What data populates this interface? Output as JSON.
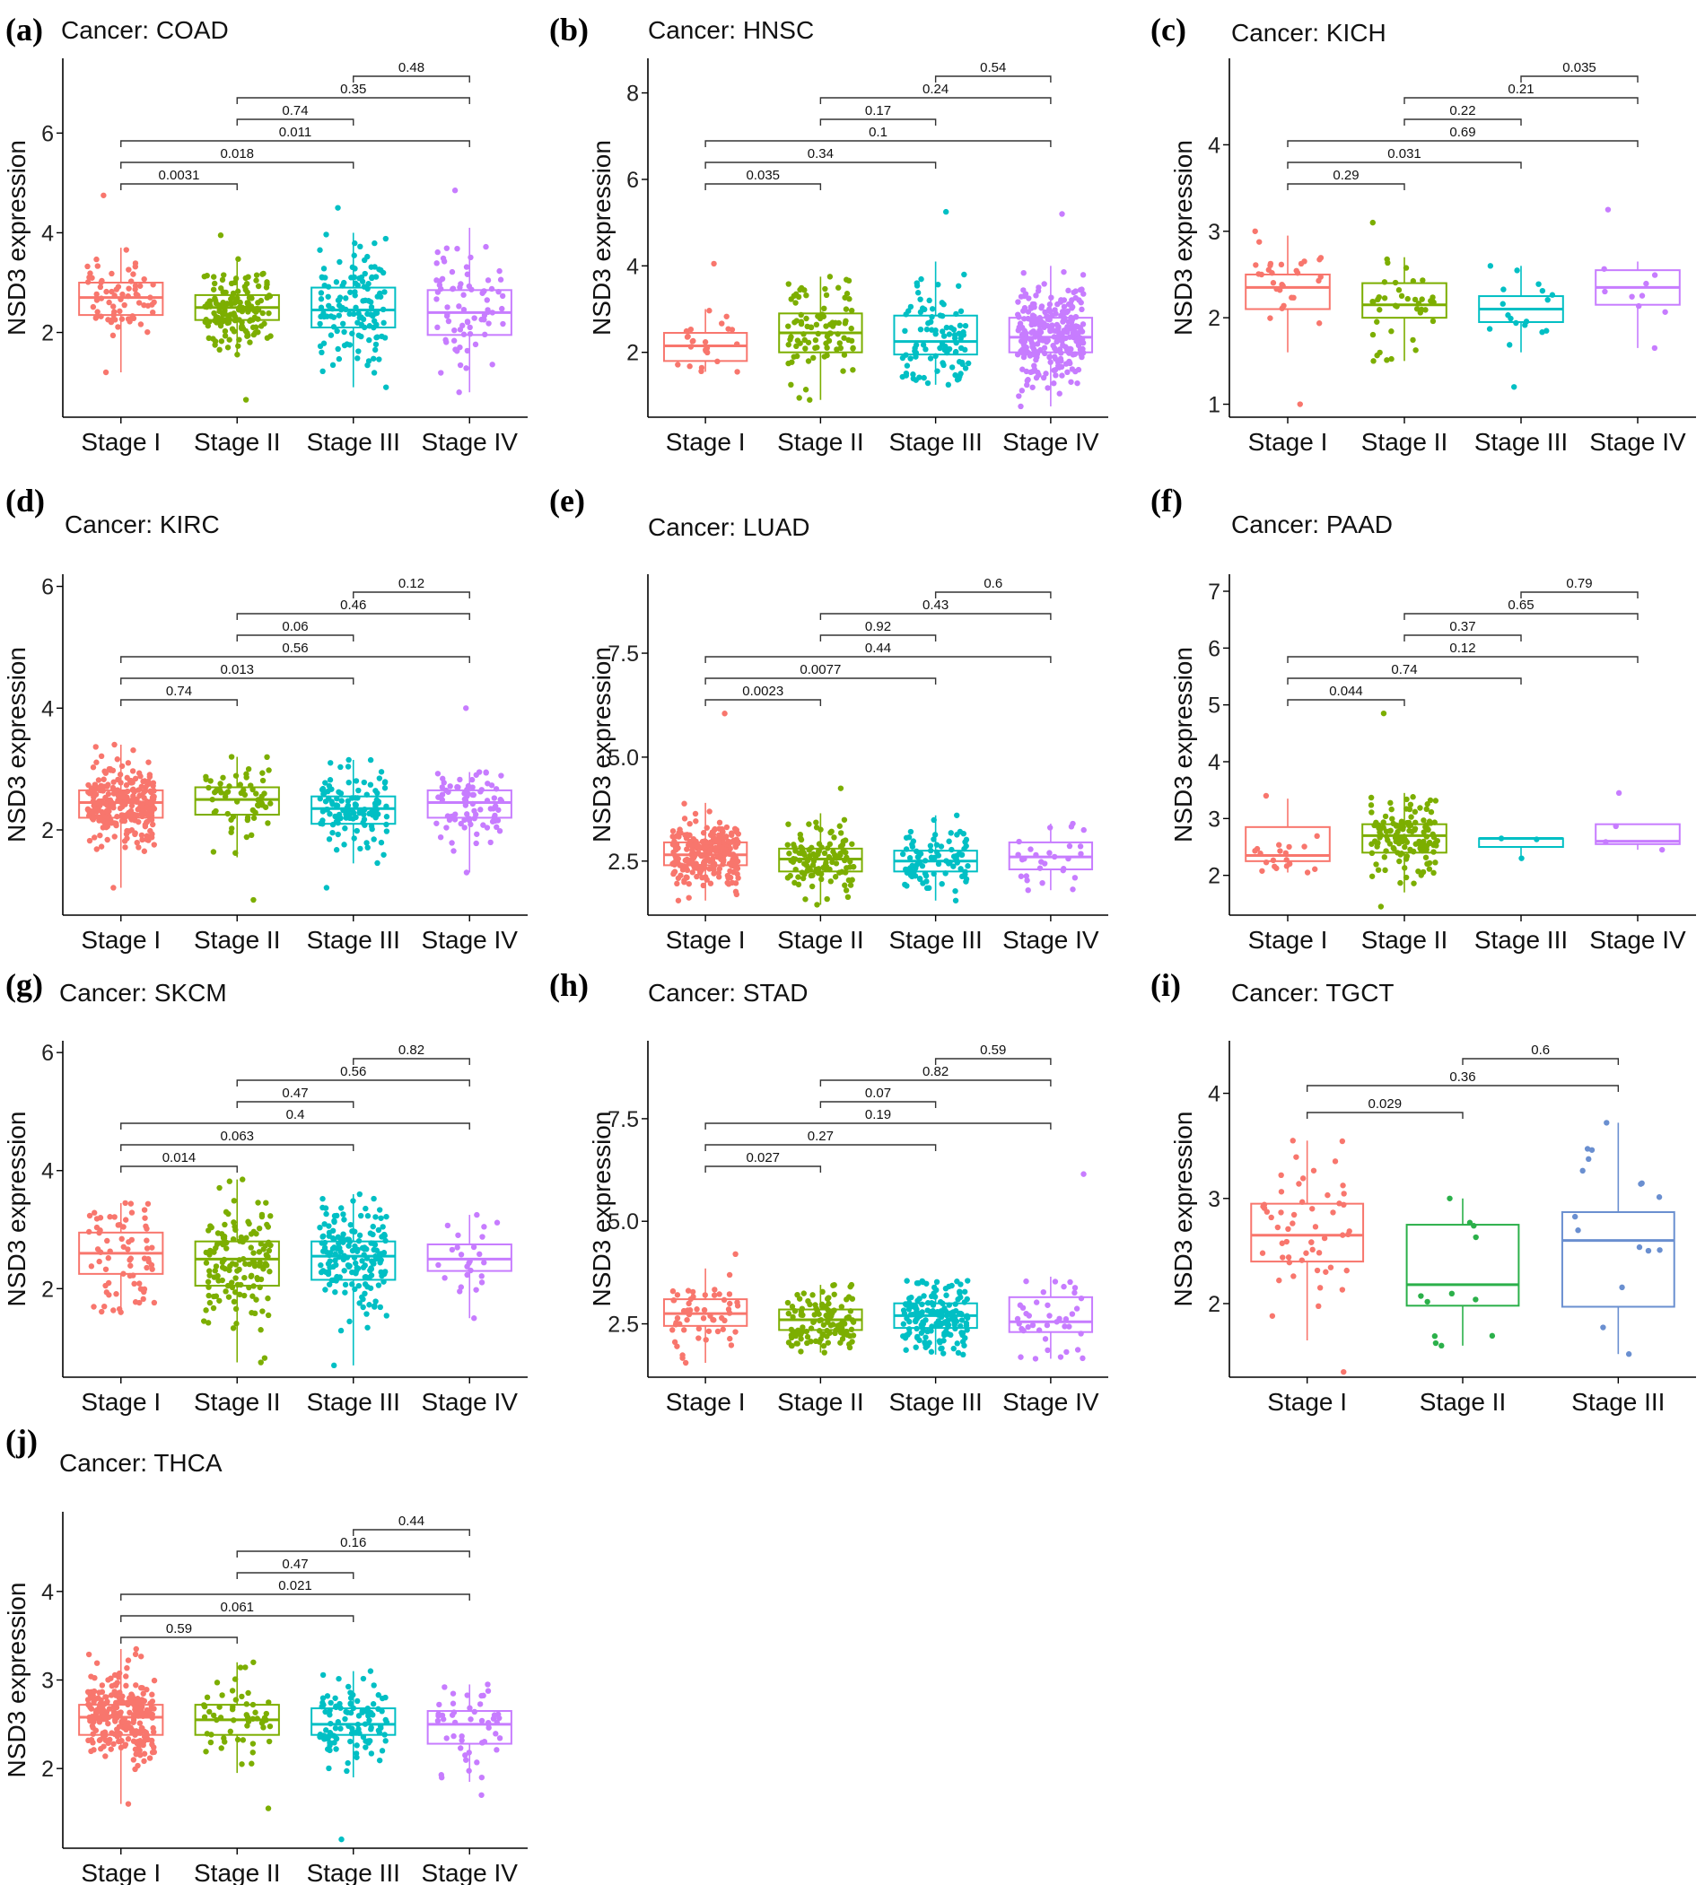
{
  "figure": {
    "ylabel": "NSD3 expression",
    "colors": [
      "#f8766d",
      "#7cae00",
      "#00bfc4",
      "#c77cff"
    ],
    "tgct_colors": [
      "#f8766d",
      "#2bb04a",
      "#6a8fd0"
    ]
  },
  "chart_data": [
    {
      "panel": "(a)",
      "title": "Cancer: COAD",
      "type": "boxplot",
      "categories": [
        "Stage I",
        "Stage II",
        "Stage III",
        "Stage IV"
      ],
      "ylim": [
        0.3,
        7.5
      ],
      "yticks": [
        2,
        4,
        6
      ],
      "n": [
        70,
        160,
        130,
        75
      ],
      "stats": [
        {
          "q1": 2.35,
          "med": 2.7,
          "q3": 3.0,
          "wlo": 1.2,
          "whi": 3.7,
          "min": 1.2,
          "max": 4.75
        },
        {
          "q1": 2.25,
          "med": 2.5,
          "q3": 2.75,
          "wlo": 1.55,
          "whi": 3.5,
          "min": 0.65,
          "max": 3.95
        },
        {
          "q1": 2.1,
          "med": 2.45,
          "q3": 2.9,
          "wlo": 0.9,
          "whi": 4.0,
          "min": 0.9,
          "max": 4.5
        },
        {
          "q1": 1.95,
          "med": 2.4,
          "q3": 2.85,
          "wlo": 0.8,
          "whi": 4.1,
          "min": 0.8,
          "max": 4.85
        }
      ],
      "comparisons": [
        {
          "a": 0,
          "b": 1,
          "p": "0.0031"
        },
        {
          "a": 0,
          "b": 2,
          "p": "0.018"
        },
        {
          "a": 0,
          "b": 3,
          "p": "0.011"
        },
        {
          "a": 1,
          "b": 2,
          "p": "0.74"
        },
        {
          "a": 1,
          "b": 3,
          "p": "0.35"
        },
        {
          "a": 2,
          "b": 3,
          "p": "0.48"
        }
      ]
    },
    {
      "panel": "(b)",
      "title": "Cancer: HNSC",
      "type": "boxplot",
      "categories": [
        "Stage I",
        "Stage II",
        "Stage III",
        "Stage IV"
      ],
      "ylim": [
        0.5,
        8.8
      ],
      "yticks": [
        2,
        4,
        6,
        8
      ],
      "n": [
        25,
        90,
        95,
        270
      ],
      "stats": [
        {
          "q1": 1.8,
          "med": 2.15,
          "q3": 2.45,
          "wlo": 1.55,
          "whi": 3.0,
          "min": 1.55,
          "max": 4.05
        },
        {
          "q1": 2.0,
          "med": 2.45,
          "q3": 2.9,
          "wlo": 0.9,
          "whi": 3.75,
          "min": 0.9,
          "max": 3.75
        },
        {
          "q1": 1.95,
          "med": 2.25,
          "q3": 2.85,
          "wlo": 1.25,
          "whi": 4.1,
          "min": 1.25,
          "max": 5.25
        },
        {
          "q1": 2.0,
          "med": 2.35,
          "q3": 2.8,
          "wlo": 0.75,
          "whi": 4.0,
          "min": 0.75,
          "max": 5.2
        }
      ],
      "comparisons": [
        {
          "a": 0,
          "b": 1,
          "p": "0.035"
        },
        {
          "a": 0,
          "b": 2,
          "p": "0.34"
        },
        {
          "a": 0,
          "b": 3,
          "p": "0.1"
        },
        {
          "a": 1,
          "b": 2,
          "p": "0.17"
        },
        {
          "a": 1,
          "b": 3,
          "p": "0.24"
        },
        {
          "a": 2,
          "b": 3,
          "p": "0.54"
        }
      ]
    },
    {
      "panel": "(c)",
      "title": "Cancer: KICH",
      "type": "boxplot",
      "categories": [
        "Stage I",
        "Stage II",
        "Stage III",
        "Stage IV"
      ],
      "ylim": [
        0.85,
        5.0
      ],
      "yticks": [
        1,
        2,
        3,
        4
      ],
      "n": [
        30,
        40,
        18,
        10
      ],
      "stats": [
        {
          "q1": 2.1,
          "med": 2.35,
          "q3": 2.5,
          "wlo": 1.6,
          "whi": 2.95,
          "min": 1.0,
          "max": 3.0
        },
        {
          "q1": 2.0,
          "med": 2.15,
          "q3": 2.4,
          "wlo": 1.5,
          "whi": 2.7,
          "min": 1.5,
          "max": 3.1
        },
        {
          "q1": 1.95,
          "med": 2.1,
          "q3": 2.25,
          "wlo": 1.6,
          "whi": 2.6,
          "min": 1.2,
          "max": 2.6
        },
        {
          "q1": 2.15,
          "med": 2.35,
          "q3": 2.55,
          "wlo": 1.65,
          "whi": 2.65,
          "min": 1.65,
          "max": 3.25
        }
      ],
      "comparisons": [
        {
          "a": 0,
          "b": 1,
          "p": "0.29"
        },
        {
          "a": 0,
          "b": 2,
          "p": "0.031"
        },
        {
          "a": 0,
          "b": 3,
          "p": "0.69"
        },
        {
          "a": 1,
          "b": 2,
          "p": "0.22"
        },
        {
          "a": 1,
          "b": 3,
          "p": "0.21"
        },
        {
          "a": 2,
          "b": 3,
          "p": "0.035"
        }
      ]
    },
    {
      "panel": "(d)",
      "title": "Cancer: KIRC",
      "type": "boxplot",
      "categories": [
        "Stage I",
        "Stage II",
        "Stage III",
        "Stage IV"
      ],
      "ylim": [
        0.6,
        6.2
      ],
      "yticks": [
        2,
        4,
        6
      ],
      "n": [
        260,
        60,
        120,
        80
      ],
      "stats": [
        {
          "q1": 2.2,
          "med": 2.45,
          "q3": 2.65,
          "wlo": 1.05,
          "whi": 3.4,
          "min": 1.05,
          "max": 3.4
        },
        {
          "q1": 2.25,
          "med": 2.5,
          "q3": 2.7,
          "wlo": 1.55,
          "whi": 3.2,
          "min": 0.85,
          "max": 3.2
        },
        {
          "q1": 2.1,
          "med": 2.35,
          "q3": 2.55,
          "wlo": 1.45,
          "whi": 3.15,
          "min": 1.05,
          "max": 3.15
        },
        {
          "q1": 2.2,
          "med": 2.45,
          "q3": 2.65,
          "wlo": 1.3,
          "whi": 2.95,
          "min": 1.3,
          "max": 4.0
        }
      ],
      "comparisons": [
        {
          "a": 0,
          "b": 1,
          "p": "0.74"
        },
        {
          "a": 0,
          "b": 2,
          "p": "0.013"
        },
        {
          "a": 0,
          "b": 3,
          "p": "0.56"
        },
        {
          "a": 1,
          "b": 2,
          "p": "0.06"
        },
        {
          "a": 1,
          "b": 3,
          "p": "0.46"
        },
        {
          "a": 2,
          "b": 3,
          "p": "0.12"
        }
      ]
    },
    {
      "panel": "(e)",
      "title": "Cancer: LUAD",
      "type": "boxplot",
      "categories": [
        "Stage I",
        "Stage II",
        "Stage III",
        "Stage IV"
      ],
      "ylim": [
        1.2,
        9.4
      ],
      "yticks": [
        2.5,
        5.0,
        7.5
      ],
      "ytick_labels": [
        "2.5",
        "5.0",
        "7.5"
      ],
      "n": [
        270,
        120,
        85,
        28
      ],
      "stats": [
        {
          "q1": 2.4,
          "med": 2.65,
          "q3": 2.95,
          "wlo": 1.55,
          "whi": 3.9,
          "min": 1.55,
          "max": 6.05
        },
        {
          "q1": 2.25,
          "med": 2.55,
          "q3": 2.8,
          "wlo": 1.45,
          "whi": 3.65,
          "min": 1.45,
          "max": 4.25
        },
        {
          "q1": 2.25,
          "med": 2.5,
          "q3": 2.75,
          "wlo": 1.55,
          "whi": 3.6,
          "min": 1.55,
          "max": 3.6
        },
        {
          "q1": 2.3,
          "med": 2.6,
          "q3": 2.95,
          "wlo": 1.8,
          "whi": 3.4,
          "min": 1.8,
          "max": 3.4
        }
      ],
      "comparisons": [
        {
          "a": 0,
          "b": 1,
          "p": "0.0023"
        },
        {
          "a": 0,
          "b": 2,
          "p": "0.0077"
        },
        {
          "a": 0,
          "b": 3,
          "p": "0.44"
        },
        {
          "a": 1,
          "b": 2,
          "p": "0.92"
        },
        {
          "a": 1,
          "b": 3,
          "p": "0.43"
        },
        {
          "a": 2,
          "b": 3,
          "p": "0.6"
        }
      ]
    },
    {
      "panel": "(f)",
      "title": "Cancer: PAAD",
      "type": "boxplot",
      "categories": [
        "Stage I",
        "Stage II",
        "Stage III",
        "Stage IV"
      ],
      "ylim": [
        1.3,
        7.3
      ],
      "yticks": [
        2,
        3,
        4,
        5,
        6,
        7
      ],
      "n": [
        20,
        140,
        3,
        4
      ],
      "stats": [
        {
          "q1": 2.25,
          "med": 2.35,
          "q3": 2.85,
          "wlo": 2.05,
          "whi": 3.35,
          "min": 2.05,
          "max": 3.4
        },
        {
          "q1": 2.4,
          "med": 2.7,
          "q3": 2.9,
          "wlo": 1.7,
          "whi": 3.45,
          "min": 1.45,
          "max": 4.85
        },
        {
          "q1": 2.5,
          "med": 2.65,
          "q3": 2.65,
          "wlo": 2.3,
          "whi": 2.65,
          "min": 2.3,
          "max": 2.65
        },
        {
          "q1": 2.55,
          "med": 2.6,
          "q3": 2.9,
          "wlo": 2.45,
          "whi": 2.9,
          "min": 2.45,
          "max": 3.45
        }
      ],
      "comparisons": [
        {
          "a": 0,
          "b": 1,
          "p": "0.044"
        },
        {
          "a": 0,
          "b": 2,
          "p": "0.74"
        },
        {
          "a": 0,
          "b": 3,
          "p": "0.12"
        },
        {
          "a": 1,
          "b": 2,
          "p": "0.37"
        },
        {
          "a": 1,
          "b": 3,
          "p": "0.65"
        },
        {
          "a": 2,
          "b": 3,
          "p": "0.79"
        }
      ]
    },
    {
      "panel": "(g)",
      "title": "Cancer: SKCM",
      "type": "boxplot",
      "categories": [
        "Stage I",
        "Stage II",
        "Stage III",
        "Stage IV"
      ],
      "ylim": [
        0.5,
        6.2
      ],
      "yticks": [
        2,
        4,
        6
      ],
      "n": [
        70,
        140,
        170,
        25
      ],
      "stats": [
        {
          "q1": 2.25,
          "med": 2.6,
          "q3": 2.95,
          "wlo": 1.6,
          "whi": 3.45,
          "min": 1.6,
          "max": 3.45
        },
        {
          "q1": 2.05,
          "med": 2.5,
          "q3": 2.8,
          "wlo": 0.75,
          "whi": 3.85,
          "min": 0.75,
          "max": 3.85
        },
        {
          "q1": 2.15,
          "med": 2.55,
          "q3": 2.8,
          "wlo": 0.7,
          "whi": 3.6,
          "min": 0.7,
          "max": 3.6
        },
        {
          "q1": 2.3,
          "med": 2.5,
          "q3": 2.75,
          "wlo": 1.5,
          "whi": 3.25,
          "min": 1.5,
          "max": 3.25
        }
      ],
      "comparisons": [
        {
          "a": 0,
          "b": 1,
          "p": "0.014"
        },
        {
          "a": 0,
          "b": 2,
          "p": "0.063"
        },
        {
          "a": 0,
          "b": 3,
          "p": "0.4"
        },
        {
          "a": 1,
          "b": 2,
          "p": "0.47"
        },
        {
          "a": 1,
          "b": 3,
          "p": "0.56"
        },
        {
          "a": 2,
          "b": 3,
          "p": "0.82"
        }
      ]
    },
    {
      "panel": "(h)",
      "title": "Cancer: STAD",
      "type": "boxplot",
      "categories": [
        "Stage I",
        "Stage II",
        "Stage III",
        "Stage IV"
      ],
      "ylim": [
        1.2,
        9.4
      ],
      "yticks": [
        2.5,
        5.0,
        7.5
      ],
      "ytick_labels": [
        "2.5",
        "5.0",
        "7.5"
      ],
      "n": [
        55,
        120,
        165,
        40
      ],
      "stats": [
        {
          "q1": 2.45,
          "med": 2.75,
          "q3": 3.1,
          "wlo": 1.55,
          "whi": 3.85,
          "min": 1.55,
          "max": 4.2
        },
        {
          "q1": 2.35,
          "med": 2.6,
          "q3": 2.85,
          "wlo": 1.8,
          "whi": 3.45,
          "min": 1.8,
          "max": 3.45
        },
        {
          "q1": 2.4,
          "med": 2.7,
          "q3": 3.0,
          "wlo": 1.75,
          "whi": 3.55,
          "min": 1.75,
          "max": 3.55
        },
        {
          "q1": 2.3,
          "med": 2.55,
          "q3": 3.15,
          "wlo": 1.65,
          "whi": 3.65,
          "min": 1.65,
          "max": 6.15
        }
      ],
      "comparisons": [
        {
          "a": 0,
          "b": 1,
          "p": "0.027"
        },
        {
          "a": 0,
          "b": 2,
          "p": "0.27"
        },
        {
          "a": 0,
          "b": 3,
          "p": "0.19"
        },
        {
          "a": 1,
          "b": 2,
          "p": "0.07"
        },
        {
          "a": 1,
          "b": 3,
          "p": "0.82"
        },
        {
          "a": 2,
          "b": 3,
          "p": "0.59"
        }
      ]
    },
    {
      "panel": "(i)",
      "title": "Cancer: TGCT",
      "type": "boxplot",
      "categories": [
        "Stage I",
        "Stage II",
        "Stage III"
      ],
      "ylim": [
        1.3,
        4.5
      ],
      "yticks": [
        2,
        3,
        4
      ],
      "n": [
        55,
        12,
        16
      ],
      "stats": [
        {
          "q1": 2.4,
          "med": 2.65,
          "q3": 2.95,
          "wlo": 1.65,
          "whi": 3.55,
          "min": 1.35,
          "max": 3.55
        },
        {
          "q1": 1.98,
          "med": 2.18,
          "q3": 2.75,
          "wlo": 1.6,
          "whi": 3.0,
          "min": 1.6,
          "max": 3.0
        },
        {
          "q1": 1.97,
          "med": 2.6,
          "q3": 2.87,
          "wlo": 1.52,
          "whi": 3.72,
          "min": 1.52,
          "max": 3.72
        }
      ],
      "comparisons": [
        {
          "a": 0,
          "b": 1,
          "p": "0.029"
        },
        {
          "a": 0,
          "b": 2,
          "p": "0.36"
        },
        {
          "a": 1,
          "b": 2,
          "p": "0.6"
        }
      ]
    },
    {
      "panel": "(j)",
      "title": "Cancer: THCA",
      "type": "boxplot",
      "categories": [
        "Stage I",
        "Stage II",
        "Stage III",
        "Stage IV"
      ],
      "ylim": [
        1.1,
        4.9
      ],
      "yticks": [
        2,
        3,
        4
      ],
      "n": [
        260,
        55,
        110,
        50
      ],
      "stats": [
        {
          "q1": 2.38,
          "med": 2.58,
          "q3": 2.72,
          "wlo": 1.6,
          "whi": 3.35,
          "min": 1.6,
          "max": 3.35
        },
        {
          "q1": 2.38,
          "med": 2.55,
          "q3": 2.72,
          "wlo": 1.95,
          "whi": 3.2,
          "min": 1.55,
          "max": 3.2
        },
        {
          "q1": 2.38,
          "med": 2.5,
          "q3": 2.68,
          "wlo": 1.9,
          "whi": 3.1,
          "min": 1.2,
          "max": 3.1
        },
        {
          "q1": 2.28,
          "med": 2.5,
          "q3": 2.65,
          "wlo": 1.85,
          "whi": 2.95,
          "min": 1.7,
          "max": 2.95
        }
      ],
      "comparisons": [
        {
          "a": 0,
          "b": 1,
          "p": "0.59"
        },
        {
          "a": 0,
          "b": 2,
          "p": "0.061"
        },
        {
          "a": 0,
          "b": 3,
          "p": "0.021"
        },
        {
          "a": 1,
          "b": 2,
          "p": "0.47"
        },
        {
          "a": 1,
          "b": 3,
          "p": "0.16"
        },
        {
          "a": 2,
          "b": 3,
          "p": "0.44"
        }
      ]
    }
  ]
}
